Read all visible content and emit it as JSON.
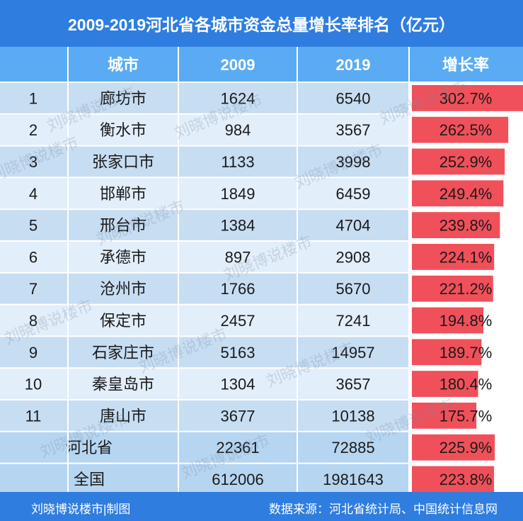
{
  "title": "2009-2019河北省各城市资金总量增长率排名（亿元）",
  "footer": {
    "left": "刘晓博说楼市|制图",
    "right": "数据来源：河北省统计局、中国统计信息网"
  },
  "watermark": "刘晓博说楼市",
  "colors": {
    "title_bg": "#2f7ddf",
    "header_bg": "#5aabf3",
    "row_odd": "#c7ddf2",
    "row_even": "#e2eef9",
    "bar": "#f0505a",
    "summary_bg": "#b6d5f1"
  },
  "chart_data": {
    "type": "table",
    "columns": [
      "",
      "城市",
      "2009",
      "2019",
      "增长率"
    ],
    "rows": [
      {
        "rank": "1",
        "city": "廊坊市",
        "y2009": "1624",
        "y2019": "6540",
        "rate": "302.7%",
        "rate_value": 302.7
      },
      {
        "rank": "2",
        "city": "衡水市",
        "y2009": "984",
        "y2019": "3567",
        "rate": "262.5%",
        "rate_value": 262.5
      },
      {
        "rank": "3",
        "city": "张家口市",
        "y2009": "1133",
        "y2019": "3998",
        "rate": "252.9%",
        "rate_value": 252.9
      },
      {
        "rank": "4",
        "city": "邯郸市",
        "y2009": "1849",
        "y2019": "6459",
        "rate": "249.4%",
        "rate_value": 249.4
      },
      {
        "rank": "5",
        "city": "邢台市",
        "y2009": "1384",
        "y2019": "4704",
        "rate": "239.8%",
        "rate_value": 239.8
      },
      {
        "rank": "6",
        "city": "承德市",
        "y2009": "897",
        "y2019": "2908",
        "rate": "224.1%",
        "rate_value": 224.1
      },
      {
        "rank": "7",
        "city": "沧州市",
        "y2009": "1766",
        "y2019": "5670",
        "rate": "221.2%",
        "rate_value": 221.2
      },
      {
        "rank": "8",
        "city": "保定市",
        "y2009": "2457",
        "y2019": "7241",
        "rate": "194.8%",
        "rate_value": 194.8
      },
      {
        "rank": "9",
        "city": "石家庄市",
        "y2009": "5163",
        "y2019": "14957",
        "rate": "189.7%",
        "rate_value": 189.7
      },
      {
        "rank": "10",
        "city": "秦皇岛市",
        "y2009": "1304",
        "y2019": "3657",
        "rate": "180.4%",
        "rate_value": 180.4
      },
      {
        "rank": "11",
        "city": "唐山市",
        "y2009": "3677",
        "y2019": "10138",
        "rate": "175.7%",
        "rate_value": 175.7
      }
    ],
    "summary": [
      {
        "label": "河北省",
        "y2009": "22361",
        "y2019": "72885",
        "rate": "225.9%",
        "rate_value": 225.9
      },
      {
        "label": "全国",
        "y2009": "612006",
        "y2019": "1981643",
        "rate": "223.8%",
        "rate_value": 223.8
      }
    ]
  }
}
